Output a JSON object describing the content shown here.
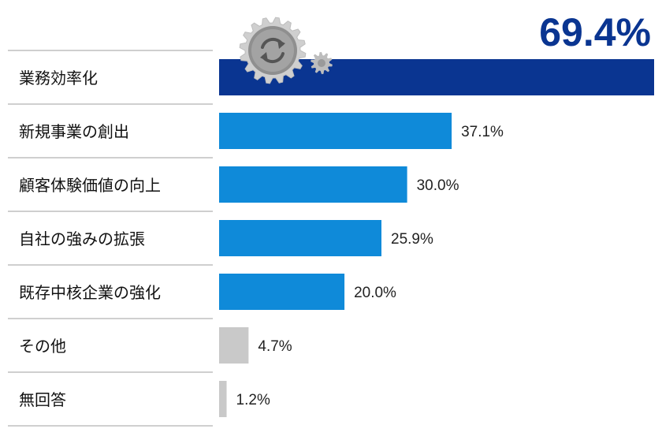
{
  "chart_data": {
    "type": "bar",
    "orientation": "horizontal",
    "title": "",
    "xlabel": "",
    "ylabel": "",
    "xlim": [
      0,
      69.4
    ],
    "grid": false,
    "legend": "none",
    "categories": [
      "業務効率化",
      "新規事業の創出",
      "顧客体験価値の向上",
      "自社の強みの拡張",
      "既存中核企業の強化",
      "その他",
      "無回答"
    ],
    "values": [
      69.4,
      37.1,
      30.0,
      25.9,
      20.0,
      4.7,
      1.2
    ],
    "value_labels": [
      "69.4%",
      "37.1%",
      "30.0%",
      "25.9%",
      "20.0%",
      "4.7%",
      "1.2%"
    ],
    "bar_colors": [
      "#0a3591",
      "#0f8ad9",
      "#0f8ad9",
      "#0f8ad9",
      "#0f8ad9",
      "#c9c9c9",
      "#c9c9c9"
    ],
    "highlight_color": "#0a3591",
    "divider_color": "#cfcfcf",
    "decoration": "gear-icon"
  }
}
